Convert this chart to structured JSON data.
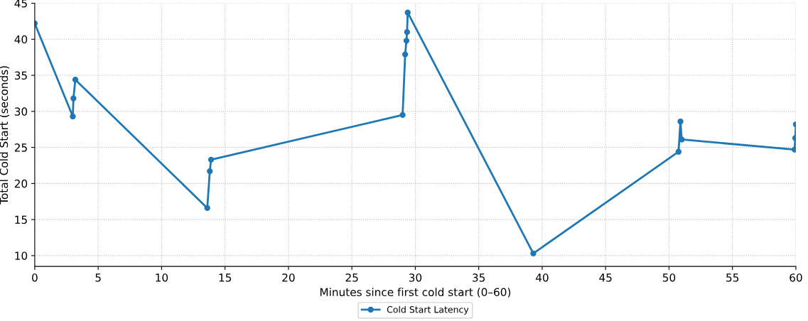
{
  "chart_data": {
    "type": "line",
    "xlabel": "Minutes since first cold start (0–60)",
    "ylabel": "Total Cold Start (seconds)",
    "x": [
      0,
      3.0,
      3.05,
      3.2,
      13.6,
      13.8,
      13.9,
      29.0,
      29.2,
      29.3,
      29.35,
      29.4,
      39.3,
      50.75,
      50.9,
      51.0,
      59.9,
      59.95,
      60
    ],
    "series": [
      {
        "name": "Cold Start Latency",
        "color": "#1f77b4",
        "values": [
          42.2,
          29.3,
          31.8,
          34.4,
          16.6,
          21.7,
          23.3,
          29.5,
          37.9,
          39.8,
          41.0,
          43.7,
          10.3,
          24.4,
          28.6,
          26.1,
          24.7,
          26.3,
          28.2
        ]
      }
    ],
    "xlim": [
      0,
      60
    ],
    "xticks": [
      0,
      5,
      10,
      15,
      20,
      25,
      30,
      35,
      40,
      45,
      50,
      55,
      60
    ],
    "ylim": [
      8.5,
      45
    ],
    "yticks": [
      10,
      15,
      20,
      25,
      30,
      35,
      40,
      45
    ],
    "grid": true,
    "legend": "bottom",
    "marker": "circle",
    "line_style": "solid"
  }
}
